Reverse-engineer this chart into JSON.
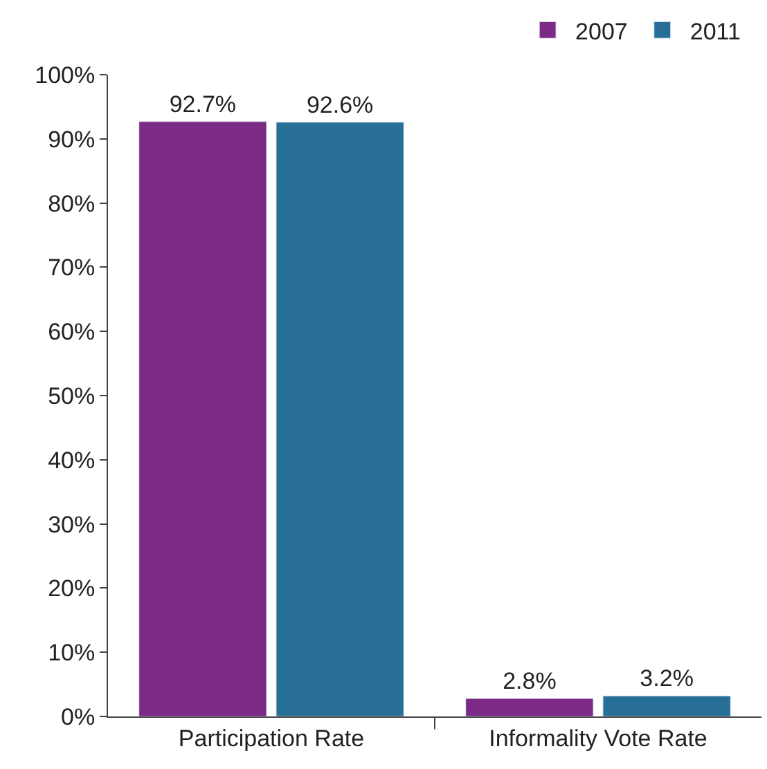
{
  "chart_data": {
    "type": "bar",
    "categories": [
      "Participation Rate",
      "Informality Vote Rate"
    ],
    "series": [
      {
        "name": "2007",
        "color": "#7b2a86",
        "values": [
          92.7,
          2.8
        ],
        "value_labels": [
          "92.7%",
          "2.8%"
        ]
      },
      {
        "name": "2011",
        "color": "#276f96",
        "values": [
          92.6,
          3.2
        ],
        "value_labels": [
          "92.6%",
          "3.2%"
        ]
      }
    ],
    "ylim": [
      0,
      100
    ],
    "yticks": [
      {
        "value": 0,
        "label": "0%"
      },
      {
        "value": 10,
        "label": "10%"
      },
      {
        "value": 20,
        "label": "20%"
      },
      {
        "value": 30,
        "label": "30%"
      },
      {
        "value": 40,
        "label": "40%"
      },
      {
        "value": 50,
        "label": "50%"
      },
      {
        "value": 60,
        "label": "60%"
      },
      {
        "value": 70,
        "label": "70%"
      },
      {
        "value": 80,
        "label": "80%"
      },
      {
        "value": 90,
        "label": "90%"
      },
      {
        "value": 100,
        "label": "100%"
      }
    ],
    "legend": "top right"
  }
}
